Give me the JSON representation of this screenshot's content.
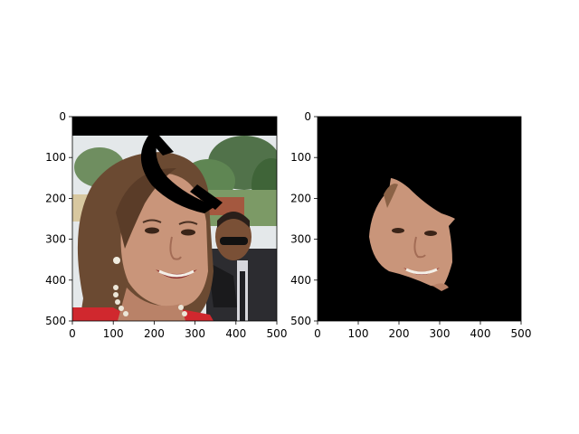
{
  "figure": {
    "panels": [
      {
        "name": "left-panel",
        "content": "photo of smiling woman with long brown hair, red top and pearl necklace; man in sunglasses and dark suit behind; trees and sky background; black bar across top and black diagonal arc occlusion over forehead",
        "x_ticks": [
          "0",
          "100",
          "200",
          "300",
          "400",
          "500"
        ],
        "y_ticks": [
          "0",
          "100",
          "200",
          "300",
          "400",
          "500"
        ]
      },
      {
        "name": "right-panel",
        "content": "black background with only the segmented face region of the woman visible",
        "x_ticks": [
          "0",
          "100",
          "200",
          "300",
          "400",
          "500"
        ],
        "y_ticks": [
          "0",
          "100",
          "200",
          "300",
          "400",
          "500"
        ]
      }
    ]
  },
  "colors": {
    "background": "#ffffff",
    "mask": "#000000",
    "skin": "#c9957a",
    "hair": "#6b4a32",
    "top": "#d0282e",
    "foliage": "#4f7a46",
    "sky": "#e4e8ea"
  }
}
